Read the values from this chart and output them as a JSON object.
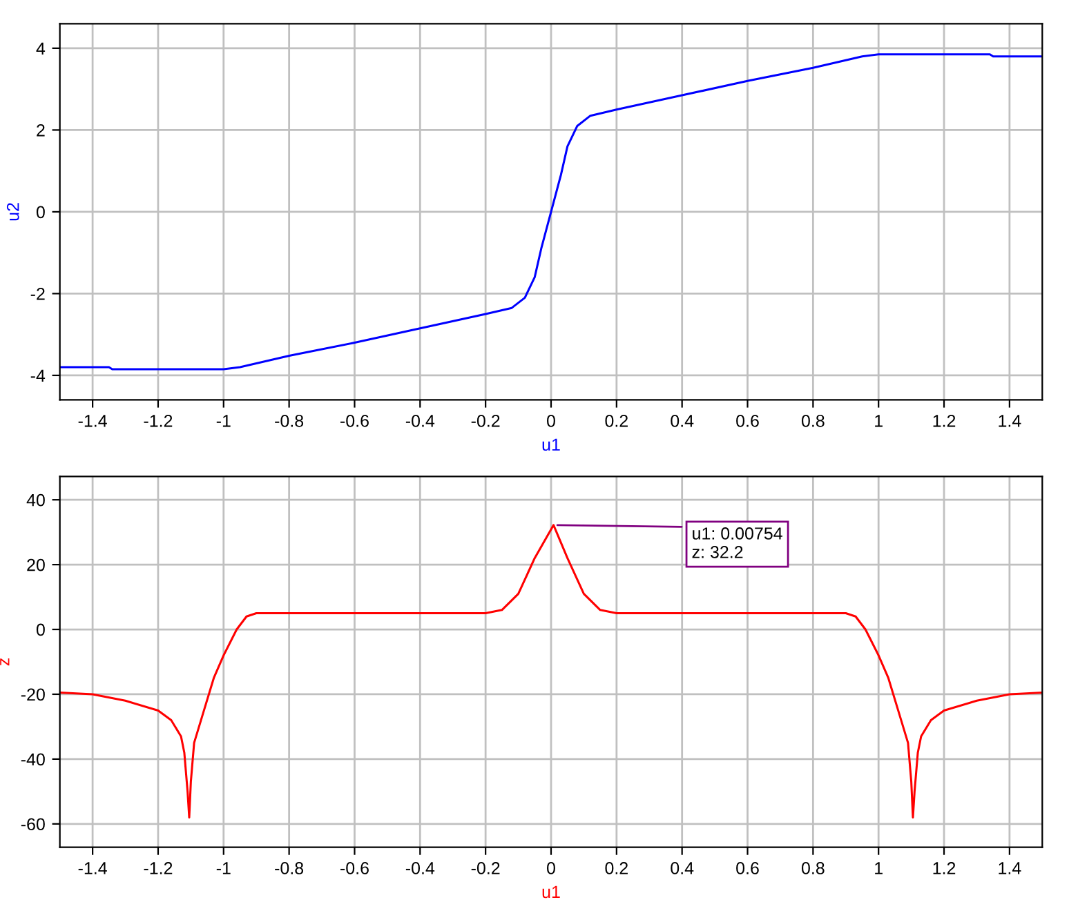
{
  "chart_data": [
    {
      "type": "line",
      "xlabel": "u1",
      "ylabel": "u2",
      "xlim": [
        -1.5,
        1.5
      ],
      "ylim": [
        -4.6,
        4.6
      ],
      "xticks": [
        -1.4,
        -1.2,
        -1,
        -0.8,
        -0.6,
        -0.4,
        -0.2,
        0,
        0.2,
        0.4,
        0.6,
        0.8,
        1,
        1.2,
        1.4
      ],
      "yticks": [
        -4,
        -2,
        0,
        2,
        4
      ],
      "grid": true,
      "legend": false,
      "series": [
        {
          "color": "#0000ff",
          "x": [
            -1.5,
            -1.35,
            -1.34,
            -1.0,
            -0.95,
            -0.8,
            -0.6,
            -0.4,
            -0.2,
            -0.12,
            -0.08,
            -0.05,
            -0.03,
            0,
            0.03,
            0.05,
            0.08,
            0.12,
            0.2,
            0.4,
            0.6,
            0.8,
            0.95,
            1.0,
            1.34,
            1.35,
            1.5
          ],
          "values": [
            -3.8,
            -3.8,
            -3.85,
            -3.85,
            -3.8,
            -3.52,
            -3.2,
            -2.85,
            -2.5,
            -2.35,
            -2.1,
            -1.6,
            -0.9,
            0,
            0.9,
            1.6,
            2.1,
            2.35,
            2.5,
            2.85,
            3.2,
            3.52,
            3.8,
            3.85,
            3.85,
            3.8,
            3.8
          ]
        }
      ]
    },
    {
      "type": "line",
      "xlabel": "u1",
      "ylabel": "z",
      "xlim": [
        -1.5,
        1.5
      ],
      "ylim": [
        -67.2,
        47.2
      ],
      "xticks": [
        -1.4,
        -1.2,
        -1,
        -0.8,
        -0.6,
        -0.4,
        -0.2,
        0,
        0.2,
        0.4,
        0.6,
        0.8,
        1,
        1.2,
        1.4
      ],
      "yticks": [
        -60,
        -40,
        -20,
        0,
        20,
        40
      ],
      "grid": true,
      "legend": false,
      "annotations": [
        {
          "text": "u1: 0.00754\nz: 32.2",
          "x": 0.00754,
          "y": 32.2
        }
      ],
      "series": [
        {
          "color": "#ff0000",
          "x": [
            -1.5,
            -1.4,
            -1.3,
            -1.2,
            -1.16,
            -1.13,
            -1.12,
            -1.11,
            -1.105,
            -1.1,
            -1.09,
            -1.06,
            -1.03,
            -1.0,
            -0.96,
            -0.93,
            -0.9,
            -0.2,
            -0.15,
            -0.1,
            -0.05,
            0.00754,
            0.05,
            0.1,
            0.15,
            0.2,
            0.9,
            0.93,
            0.96,
            1.0,
            1.03,
            1.06,
            1.09,
            1.1,
            1.105,
            1.11,
            1.12,
            1.13,
            1.16,
            1.2,
            1.3,
            1.4,
            1.5
          ],
          "values": [
            -19.5,
            -20,
            -22,
            -25,
            -28,
            -33,
            -38,
            -50,
            -58,
            -47,
            -35,
            -25,
            -15,
            -8,
            0,
            4,
            5,
            5,
            6,
            11,
            22,
            32.2,
            22,
            11,
            6,
            5,
            5,
            4,
            0,
            -8,
            -15,
            -25,
            -35,
            -47,
            -58,
            -50,
            -38,
            -33,
            -28,
            -25,
            -22,
            -20,
            -19.5
          ]
        }
      ]
    }
  ]
}
